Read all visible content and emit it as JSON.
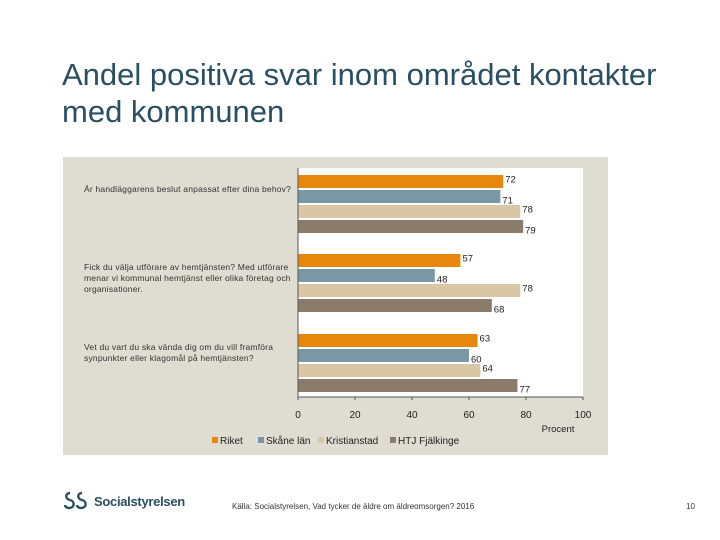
{
  "title": "Andel positiva svar inom området kontakter med kommunen",
  "footer": {
    "source": "Källa: Socialstyrelsen, Vad tycker de äldre om äldreomsorgen? 2016",
    "page_number": "10",
    "logo_text": "Socialstyrelsen"
  },
  "colors": {
    "Riket": "#e8870e",
    "Skåne län": "#7a97a6",
    "Kristianstad": "#d9c6a5",
    "HTJ Fjälkinge": "#8b7b6b",
    "panel": "#dfdcd2",
    "title": "#2b4f62"
  },
  "chart_data": {
    "type": "bar",
    "orientation": "horizontal",
    "categories": [
      "Är handläggarens beslut anpassat efter dina behov?",
      "Fick du välja utförare av hemtjänsten? Med utförare menar vi kommunal hemtjänst eller olika företag och organisationer.",
      "Vet du vart du ska vända dig om du vill framföra synpunkter eller klagomål på hemtjänsten?"
    ],
    "series": [
      {
        "name": "Riket",
        "values": [
          72,
          57,
          63
        ]
      },
      {
        "name": "Skåne län",
        "values": [
          71,
          48,
          60
        ]
      },
      {
        "name": "Kristianstad",
        "values": [
          78,
          78,
          64
        ]
      },
      {
        "name": "HTJ Fjälkinge",
        "values": [
          79,
          68,
          77
        ]
      }
    ],
    "xlim": [
      0,
      100
    ],
    "xticks": [
      "0",
      "20",
      "40",
      "60",
      "80",
      "100"
    ],
    "xlabel": "Procent",
    "legend_position": "bottom",
    "grid": false
  }
}
